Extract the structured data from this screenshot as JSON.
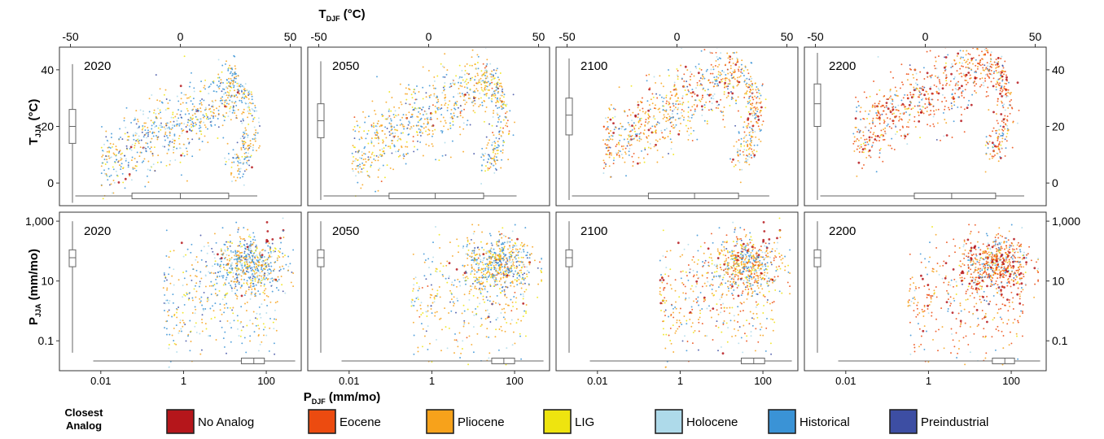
{
  "figure": {
    "top_axis_title": "T",
    "top_axis_sub": "DJF",
    "top_axis_unit": " (°C)",
    "bottom_axis_title": "P",
    "bottom_axis_sub": "DJF",
    "bottom_axis_unit": " (mm/mo)",
    "row1_axis_title": "T",
    "row1_axis_sub": "JJA",
    "row1_axis_unit": " (°C)",
    "row2_axis_title": "P",
    "row2_axis_sub": "JJA",
    "row2_axis_unit": " (mm/mo)"
  },
  "legend": {
    "title_line1": "Closest",
    "title_line2": "Analog",
    "items": [
      {
        "label": "No Analog",
        "color": "#b5161b"
      },
      {
        "label": "Eocene",
        "color": "#ec4b10"
      },
      {
        "label": "Pliocene",
        "color": "#f7a21b"
      },
      {
        "label": "LIG",
        "color": "#eee40f"
      },
      {
        "label": "Holocene",
        "color": "#aedaea"
      },
      {
        "label": "Historical",
        "color": "#3a93d6"
      },
      {
        "label": "Preindustrial",
        "color": "#3d4ea3"
      }
    ]
  },
  "chart_data": [
    {
      "type": "scatter",
      "row": "temperature",
      "xlabel": "T DJF (°C)",
      "ylabel": "T JJA (°C)",
      "xlim": [
        -55,
        55
      ],
      "ylim": [
        -8,
        48
      ],
      "xticks": [
        "-50",
        "0",
        "50"
      ],
      "xtick_values": [
        -50,
        0,
        50
      ],
      "yticks": [
        "0",
        "20",
        "40"
      ],
      "ytick_values": [
        0,
        20,
        40
      ],
      "panels": [
        {
          "year": "2020",
          "series_mix": {
            "Eocene": 0.0,
            "Pliocene": 0.3,
            "LIG": 0.12,
            "Holocene": 0.15,
            "Historical": 0.33,
            "Preindustrial": 0.09,
            "No Analog": 0.01
          },
          "x_box": {
            "min": -50,
            "q1": -22,
            "median": 0,
            "q3": 22,
            "max": 35
          },
          "y_box": {
            "min": -7,
            "q1": 14,
            "median": 20,
            "q3": 26,
            "max": 42
          }
        },
        {
          "year": "2050",
          "series_mix": {
            "Eocene": 0.03,
            "Pliocene": 0.38,
            "LIG": 0.14,
            "Holocene": 0.12,
            "Historical": 0.26,
            "Preindustrial": 0.06,
            "No Analog": 0.01
          },
          "x_box": {
            "min": -50,
            "q1": -18,
            "median": 3,
            "q3": 25,
            "max": 40
          },
          "y_box": {
            "min": -6,
            "q1": 16,
            "median": 22,
            "q3": 28,
            "max": 43
          }
        },
        {
          "year": "2100",
          "series_mix": {
            "Eocene": 0.2,
            "Pliocene": 0.35,
            "LIG": 0.12,
            "Holocene": 0.09,
            "Historical": 0.17,
            "Preindustrial": 0.04,
            "No Analog": 0.03
          },
          "x_box": {
            "min": -50,
            "q1": -13,
            "median": 8,
            "q3": 28,
            "max": 42
          },
          "y_box": {
            "min": -6,
            "q1": 17,
            "median": 24,
            "q3": 30,
            "max": 44
          }
        },
        {
          "year": "2200",
          "series_mix": {
            "Eocene": 0.45,
            "Pliocene": 0.2,
            "LIG": 0.05,
            "Holocene": 0.08,
            "Historical": 0.12,
            "Preindustrial": 0.02,
            "No Analog": 0.08
          },
          "x_box": {
            "min": -50,
            "q1": -5,
            "median": 12,
            "q3": 32,
            "max": 45
          },
          "y_box": {
            "min": -6,
            "q1": 20,
            "median": 28,
            "q3": 35,
            "max": 46
          }
        }
      ]
    },
    {
      "type": "scatter",
      "row": "precipitation",
      "xlabel": "P DJF (mm/mo)",
      "ylabel": "P JJA (mm/mo)",
      "log_scale": true,
      "xlim": [
        0.001,
        700
      ],
      "ylim": [
        0.01,
        2000
      ],
      "xticks": [
        "0.01",
        "1",
        "100"
      ],
      "xtick_values": [
        0.01,
        1,
        100
      ],
      "yticks": [
        "0.1",
        "10",
        "1,000"
      ],
      "ytick_values": [
        0.1,
        10,
        1000
      ],
      "panels": [
        {
          "year": "2020",
          "x_box": {
            "min": 0.005,
            "q1": 25,
            "median": 50,
            "q3": 90,
            "max": 500
          },
          "y_box": {
            "min": 0.04,
            "q1": 30,
            "median": 60,
            "q3": 110,
            "max": 1000
          }
        },
        {
          "year": "2050",
          "x_box": {
            "min": 0.005,
            "q1": 28,
            "median": 55,
            "q3": 100,
            "max": 500
          },
          "y_box": {
            "min": 0.04,
            "q1": 30,
            "median": 60,
            "q3": 110,
            "max": 1000
          }
        },
        {
          "year": "2100",
          "x_box": {
            "min": 0.005,
            "q1": 30,
            "median": 60,
            "q3": 110,
            "max": 500
          },
          "y_box": {
            "min": 0.04,
            "q1": 30,
            "median": 60,
            "q3": 110,
            "max": 1000
          }
        },
        {
          "year": "2200",
          "x_box": {
            "min": 0.005,
            "q1": 35,
            "median": 70,
            "q3": 120,
            "max": 500
          },
          "y_box": {
            "min": 0.04,
            "q1": 30,
            "median": 60,
            "q3": 110,
            "max": 1000
          }
        }
      ]
    }
  ]
}
